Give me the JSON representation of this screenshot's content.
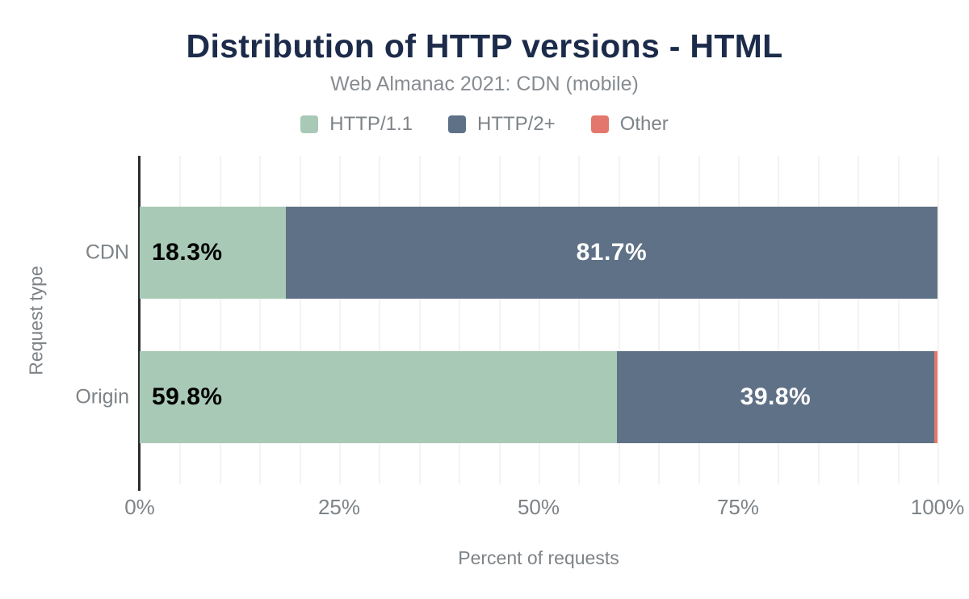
{
  "chart_data": {
    "type": "bar",
    "orientation": "horizontal",
    "stacked": true,
    "title": "Distribution of HTTP versions - HTML",
    "subtitle": "Web Almanac 2021: CDN (mobile)",
    "xlabel": "Percent of requests",
    "ylabel": "Request type",
    "categories": [
      "CDN",
      "Origin"
    ],
    "series": [
      {
        "name": "HTTP/1.1",
        "color": "#a8c9b6",
        "values": [
          18.3,
          59.8
        ],
        "labels": [
          "18.3%",
          "59.8%"
        ],
        "label_color": "#000000",
        "label_align": "start"
      },
      {
        "name": "HTTP/2+",
        "color": "#5f7186",
        "values": [
          81.7,
          39.8
        ],
        "labels": [
          "81.7%",
          "39.8%"
        ],
        "label_color": "#ffffff",
        "label_align": "center"
      },
      {
        "name": "Other",
        "color": "#e4776d",
        "values": [
          0.0,
          0.4
        ],
        "labels": [
          "",
          ""
        ],
        "label_color": "#ffffff",
        "label_align": "center"
      }
    ],
    "xlim": [
      0,
      100
    ],
    "x_ticks": [
      "0%",
      "25%",
      "50%",
      "75%",
      "100%"
    ],
    "x_tick_values": [
      0,
      25,
      50,
      75,
      100
    ],
    "gridline_step_percent": 5,
    "grid": true,
    "legend_position": "top",
    "style_colors": {
      "title": "#1c2b4a",
      "subtitle": "#878c91",
      "axis-text": "#7e8387",
      "axis-line": "#2d2d2d",
      "gridline": "#f3f3f3",
      "bg": "#ffffff"
    }
  }
}
